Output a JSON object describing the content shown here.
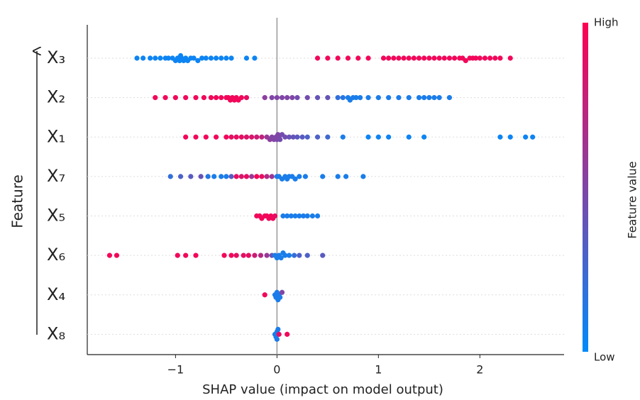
{
  "chart_data": {
    "type": "beeswarm",
    "x_label": "SHAP value (impact on model output)",
    "y_label": "Feature",
    "xlim": [
      -1.87,
      2.83
    ],
    "xticks": [
      {
        "value": -1,
        "label": "−1"
      },
      0,
      1,
      2
    ],
    "colorbar": {
      "label": "Feature value",
      "high": "High",
      "low": "Low",
      "colors": [
        "#008bfb",
        "#ff0051"
      ]
    },
    "features": [
      {
        "label": "X₃",
        "shap": [
          -1.38,
          -1.32,
          -1.25,
          -1.2,
          -1.15,
          -1.1,
          -1.07,
          -1.03,
          -1.0,
          -0.98,
          -0.96,
          -0.95,
          -0.94,
          -0.92,
          -0.9,
          -0.88,
          -0.85,
          -0.82,
          -0.78,
          -0.74,
          -0.7,
          -0.65,
          -0.6,
          -0.55,
          -0.5,
          -0.45,
          -0.3,
          -0.22,
          0.4,
          0.5,
          0.6,
          0.7,
          0.8,
          0.9,
          1.05,
          1.1,
          1.15,
          1.2,
          1.25,
          1.3,
          1.35,
          1.4,
          1.45,
          1.5,
          1.55,
          1.6,
          1.65,
          1.7,
          1.75,
          1.8,
          1.83,
          1.86,
          1.9,
          1.93,
          1.96,
          2.0,
          2.05,
          2.1,
          2.15,
          2.2,
          2.3
        ],
        "feature_value": [
          0.05,
          0.05,
          0.05,
          0.05,
          0.05,
          0.05,
          0.05,
          0.05,
          0.05,
          0.05,
          0.05,
          0.05,
          0.05,
          0.05,
          0.05,
          0.05,
          0.05,
          0.05,
          0.05,
          0.05,
          0.05,
          0.05,
          0.05,
          0.05,
          0.05,
          0.05,
          0.05,
          0.05,
          0.95,
          0.95,
          0.95,
          0.95,
          0.95,
          0.95,
          0.95,
          0.95,
          0.95,
          0.95,
          0.95,
          0.95,
          0.95,
          0.95,
          0.95,
          0.95,
          0.95,
          0.95,
          0.95,
          0.95,
          0.95,
          0.95,
          0.95,
          0.95,
          0.95,
          0.95,
          0.95,
          0.95,
          0.95,
          0.95,
          0.95,
          0.95,
          0.95
        ]
      },
      {
        "label": "X₂",
        "shap": [
          -1.2,
          -1.1,
          -1.0,
          -0.9,
          -0.8,
          -0.72,
          -0.65,
          -0.6,
          -0.55,
          -0.5,
          -0.48,
          -0.46,
          -0.44,
          -0.42,
          -0.4,
          -0.38,
          -0.35,
          -0.3,
          -0.12,
          -0.05,
          0.0,
          0.05,
          0.1,
          0.15,
          0.2,
          0.3,
          0.4,
          0.5,
          0.6,
          0.65,
          0.7,
          0.72,
          0.75,
          0.78,
          0.82,
          0.9,
          1.0,
          1.1,
          1.2,
          1.3,
          1.4,
          1.45,
          1.5,
          1.55,
          1.6,
          1.7
        ],
        "feature_value": [
          0.95,
          0.95,
          0.95,
          0.95,
          0.95,
          0.95,
          0.95,
          0.95,
          0.95,
          0.95,
          0.95,
          0.95,
          0.95,
          0.95,
          0.95,
          0.95,
          0.95,
          0.9,
          0.55,
          0.5,
          0.5,
          0.5,
          0.5,
          0.5,
          0.45,
          0.45,
          0.4,
          0.4,
          0.2,
          0.15,
          0.1,
          0.1,
          0.1,
          0.1,
          0.1,
          0.1,
          0.1,
          0.1,
          0.1,
          0.1,
          0.1,
          0.1,
          0.1,
          0.1,
          0.1,
          0.1
        ]
      },
      {
        "label": "X₁",
        "shap": [
          -0.9,
          -0.8,
          -0.7,
          -0.6,
          -0.5,
          -0.45,
          -0.4,
          -0.35,
          -0.3,
          -0.25,
          -0.2,
          -0.15,
          -0.1,
          -0.07,
          -0.05,
          -0.03,
          -0.01,
          0.0,
          0.01,
          0.02,
          0.03,
          0.05,
          0.08,
          0.12,
          0.16,
          0.2,
          0.25,
          0.3,
          0.4,
          0.5,
          0.65,
          0.9,
          1.0,
          1.1,
          1.3,
          1.45,
          2.2,
          2.3,
          2.45,
          2.52
        ],
        "feature_value": [
          0.95,
          0.95,
          0.95,
          0.95,
          0.95,
          0.9,
          0.9,
          0.9,
          0.85,
          0.85,
          0.8,
          0.75,
          0.6,
          0.55,
          0.5,
          0.5,
          0.5,
          0.5,
          0.5,
          0.5,
          0.45,
          0.45,
          0.45,
          0.4,
          0.4,
          0.35,
          0.35,
          0.3,
          0.3,
          0.25,
          0.1,
          0.05,
          0.05,
          0.05,
          0.05,
          0.05,
          0.05,
          0.05,
          0.05,
          0.05
        ]
      },
      {
        "label": "X₇",
        "shap": [
          -1.05,
          -0.95,
          -0.85,
          -0.75,
          -0.68,
          -0.62,
          -0.55,
          -0.5,
          -0.45,
          -0.4,
          -0.35,
          -0.3,
          -0.25,
          -0.2,
          -0.15,
          -0.1,
          -0.05,
          0.0,
          0.02,
          0.05,
          0.08,
          0.1,
          0.12,
          0.15,
          0.18,
          0.22,
          0.28,
          0.45,
          0.6,
          0.68,
          0.85
        ],
        "feature_value": [
          0.2,
          0.3,
          0.35,
          0.4,
          0.15,
          0.1,
          0.1,
          0.1,
          0.35,
          0.9,
          0.85,
          0.9,
          0.6,
          0.95,
          0.9,
          0.7,
          0.6,
          0.1,
          0.1,
          0.1,
          0.1,
          0.1,
          0.1,
          0.1,
          0.1,
          0.1,
          0.1,
          0.1,
          0.1,
          0.1,
          0.1
        ]
      },
      {
        "label": "X₅",
        "shap": [
          -0.2,
          -0.17,
          -0.15,
          -0.12,
          -0.1,
          -0.08,
          -0.06,
          -0.04,
          -0.02,
          0.06,
          0.1,
          0.14,
          0.18,
          0.22,
          0.26,
          0.3,
          0.35,
          0.4
        ],
        "feature_value": [
          0.95,
          0.95,
          0.95,
          0.95,
          0.95,
          0.95,
          0.95,
          0.95,
          0.9,
          0.1,
          0.1,
          0.1,
          0.1,
          0.1,
          0.1,
          0.1,
          0.1,
          0.1
        ]
      },
      {
        "label": "X₆",
        "shap": [
          -1.65,
          -1.58,
          -0.98,
          -0.9,
          -0.8,
          -0.52,
          -0.45,
          -0.4,
          -0.33,
          -0.28,
          -0.22,
          -0.16,
          -0.1,
          -0.05,
          -0.02,
          0.0,
          0.02,
          0.04,
          0.06,
          0.08,
          0.12,
          0.17,
          0.22,
          0.3,
          0.45
        ],
        "feature_value": [
          0.95,
          0.95,
          0.95,
          0.95,
          0.95,
          0.95,
          0.95,
          0.9,
          0.9,
          0.9,
          0.8,
          0.7,
          0.6,
          0.4,
          0.1,
          0.1,
          0.1,
          0.1,
          0.1,
          0.1,
          0.1,
          0.2,
          0.3,
          0.3,
          0.35
        ]
      },
      {
        "label": "X₄",
        "shap": [
          -0.12,
          -0.02,
          -0.01,
          0.0,
          0.01,
          0.02,
          0.03,
          0.05
        ],
        "feature_value": [
          0.95,
          0.1,
          0.1,
          0.1,
          0.1,
          0.1,
          0.1,
          0.5
        ]
      },
      {
        "label": "X₈",
        "shap": [
          -0.02,
          -0.01,
          0.0,
          0.0,
          0.01,
          0.02,
          0.1
        ],
        "feature_value": [
          0.1,
          0.1,
          0.1,
          0.1,
          0.1,
          0.9,
          0.95
        ]
      }
    ]
  }
}
